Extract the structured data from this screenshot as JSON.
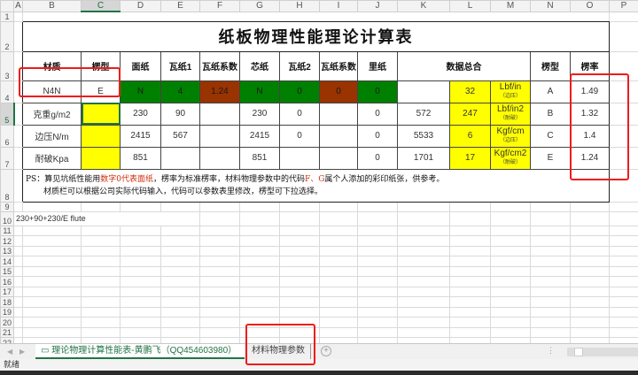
{
  "columns": [
    "A",
    "B",
    "C",
    "D",
    "E",
    "F",
    "G",
    "H",
    "I",
    "J",
    "K",
    "L",
    "M",
    "N",
    "O",
    "P"
  ],
  "rows": [
    "1",
    "2",
    "3",
    "4",
    "5",
    "6",
    "7",
    "8",
    "9",
    "10",
    "11",
    "12",
    "13",
    "14",
    "15",
    "16",
    "17",
    "18",
    "19",
    "20",
    "21",
    "22"
  ],
  "colors": {
    "green": "#008000",
    "brown": "#993300",
    "yellow": "#ffff00",
    "highlight_red": "#ee1c1c",
    "accent": "#217346"
  },
  "form": {
    "title": "纸板物理性能理论计算表",
    "headers": {
      "material": "材质",
      "flute": "楞型",
      "liner": "面纸",
      "medium1": "瓦纸1",
      "medium1_coef": "瓦纸系数",
      "core": "芯纸",
      "medium2": "瓦纸2",
      "medium2_coef": "瓦纸系数",
      "inner": "里纸",
      "total": "数据总合",
      "flute_type": "楞型",
      "flute_rate": "楞率"
    },
    "row4": {
      "material": "N4N",
      "flute": "E",
      "liner": "N",
      "medium1": "4",
      "coef1": "1.24",
      "core": "N",
      "medium2": "0",
      "coef2": "0",
      "inner": "0",
      "total": "32",
      "unit": "Lbf/in",
      "unit_note": "（边压）",
      "flute_type": "A",
      "rate": "1.49"
    },
    "row5": {
      "label": "克重g/m2",
      "liner": "230",
      "medium1": "90",
      "core": "230",
      "medium2": "0",
      "inner": "0",
      "sum": "572",
      "total": "247",
      "unit": "Lbf/in2",
      "unit_note": "（耐破）",
      "flute_type": "B",
      "rate": "1.32"
    },
    "row6": {
      "label": "边压N/m",
      "liner": "2415",
      "medium1": "567",
      "core": "2415",
      "medium2": "0",
      "inner": "0",
      "sum": "5533",
      "total": "6",
      "unit": "Kgf/cm",
      "unit_note": "（边压）",
      "flute_type": "C",
      "rate": "1.4"
    },
    "row7": {
      "label": "耐破Kpa",
      "liner": "851",
      "core": "851",
      "inner": "0",
      "sum": "1701",
      "total": "17",
      "unit": "Kgf/cm2",
      "unit_note": "（耐破）",
      "flute_type": "E",
      "rate": "1.24"
    },
    "note": {
      "p1": "PS：算见坑纸性能用",
      "p1_red": "数字0代表面纸",
      "p2": "，楞率为标准楞率，材料物理参数中的代码",
      "p2_red": "F、G",
      "p3": "属个人添加的彩印纸张，供参考。",
      "line2": "材质栏可以根据公司实际代码输入，代码可以参数表里修改，楞型可下拉选择。"
    }
  },
  "a10": "230+90+230/E flute",
  "tabs": [
    {
      "label": "理论物理计算性能表-黄鹏飞（QQ454603980）",
      "active": true
    },
    {
      "label": "材料物理参数",
      "active": false
    }
  ],
  "status": "就绪"
}
